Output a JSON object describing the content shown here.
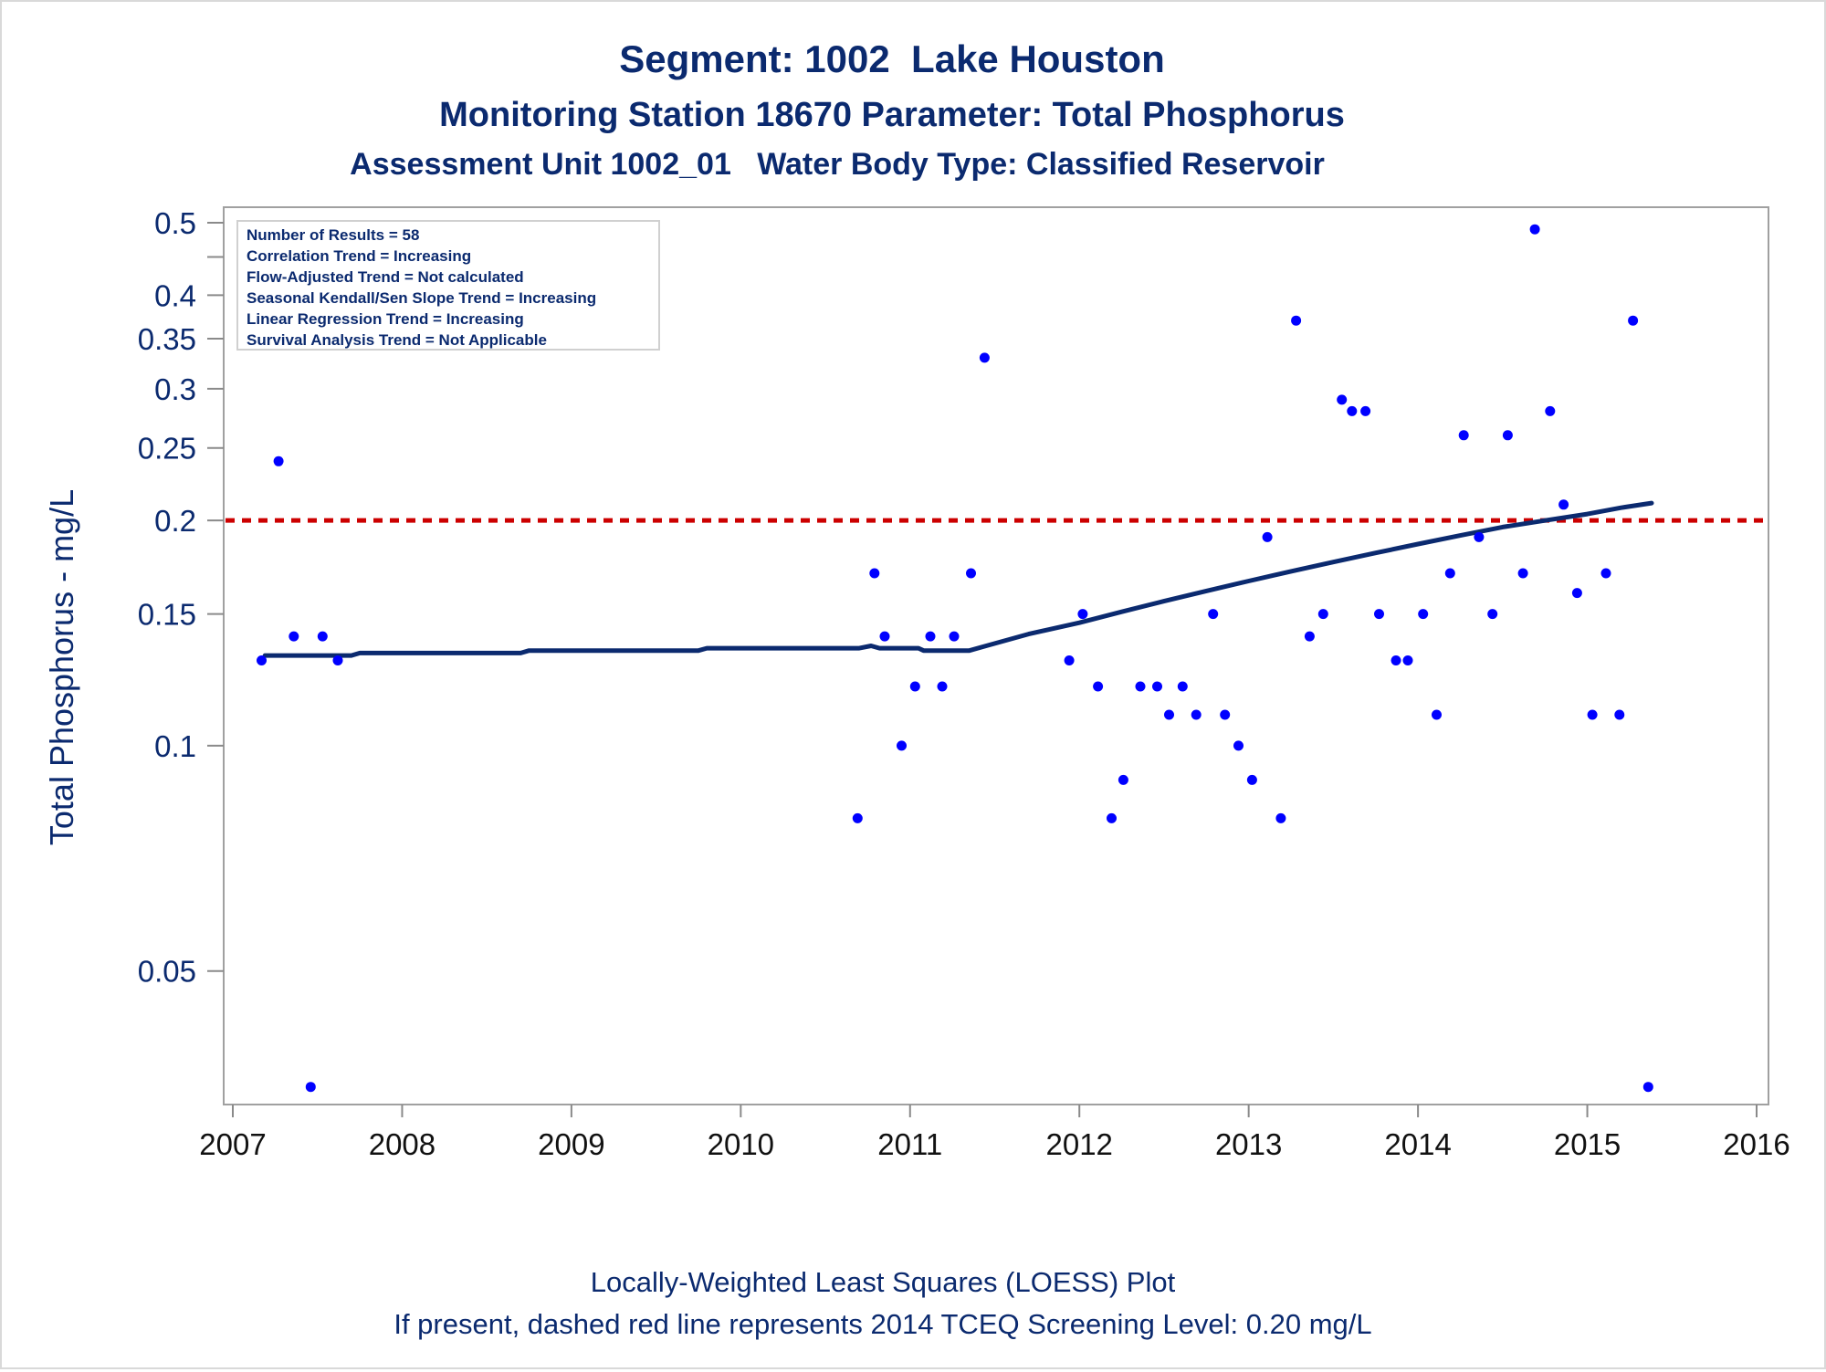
{
  "chart_data": {
    "type": "scatter",
    "title": "Segment: 1002  Lake Houston",
    "subtitle": "Monitoring Station 18670 Parameter: Total Phosphorus",
    "subtitle2": "Assessment Unit 1002_01   Water Body Type: Classified Reservoir",
    "ylabel": "Total Phosphorus - mg/L",
    "xlabel": "",
    "footnote1": "Locally-Weighted Least Squares (LOESS) Plot",
    "footnote2": "If present, dashed red line represents 2014 TCEQ Screening Level: 0.20 mg/L",
    "y_scale": "log",
    "xlim": [
      2007,
      2016
    ],
    "ylim": [
      0.034,
      0.52
    ],
    "x_ticks": [
      {
        "value": 2007,
        "label": "2007"
      },
      {
        "value": 2008,
        "label": "2008"
      },
      {
        "value": 2009,
        "label": "2009"
      },
      {
        "value": 2010,
        "label": "2010"
      },
      {
        "value": 2011,
        "label": "2011"
      },
      {
        "value": 2012,
        "label": "2012"
      },
      {
        "value": 2013,
        "label": "2013"
      },
      {
        "value": 2014,
        "label": "2014"
      },
      {
        "value": 2015,
        "label": "2015"
      },
      {
        "value": 2016,
        "label": "2016"
      }
    ],
    "y_ticks": [
      {
        "value": 0.05,
        "label": "0.05"
      },
      {
        "value": 0.1,
        "label": "0.1"
      },
      {
        "value": 0.15,
        "label": "0.15"
      },
      {
        "value": 0.2,
        "label": "0.2"
      },
      {
        "value": 0.25,
        "label": "0.25"
      },
      {
        "value": 0.3,
        "label": "0.3"
      },
      {
        "value": 0.35,
        "label": "0.35"
      },
      {
        "value": 0.4,
        "label": "0.4"
      },
      {
        "value": 0.45,
        "label": ""
      },
      {
        "value": 0.5,
        "label": "0.5"
      }
    ],
    "stats_box": [
      "Number of Results = 58",
      "Correlation Trend = Increasing",
      "Flow-Adjusted Trend = Not calculated",
      "Seasonal Kendall/Sen Slope Trend = Increasing",
      "Linear Regression Trend = Increasing",
      "Survival Analysis Trend = Not Applicable"
    ],
    "legend_placement": "top-left",
    "grid": false,
    "screening_level": 0.2,
    "colors": {
      "text": "#0b2a6f",
      "points": "#0000ff",
      "loess": "#0b2a6f",
      "screening": "#cc0000",
      "frame": "#a0a0a0"
    },
    "series": [
      {
        "type": "scatter",
        "points": [
          {
            "x": 2007.17,
            "y": 0.13
          },
          {
            "x": 2007.27,
            "y": 0.24
          },
          {
            "x": 2007.36,
            "y": 0.14
          },
          {
            "x": 2007.46,
            "y": 0.035
          },
          {
            "x": 2007.53,
            "y": 0.14
          },
          {
            "x": 2007.62,
            "y": 0.13
          },
          {
            "x": 2010.69,
            "y": 0.08
          },
          {
            "x": 2010.79,
            "y": 0.17
          },
          {
            "x": 2010.85,
            "y": 0.14
          },
          {
            "x": 2010.95,
            "y": 0.1
          },
          {
            "x": 2011.03,
            "y": 0.12
          },
          {
            "x": 2011.12,
            "y": 0.14
          },
          {
            "x": 2011.19,
            "y": 0.12
          },
          {
            "x": 2011.26,
            "y": 0.14
          },
          {
            "x": 2011.36,
            "y": 0.17
          },
          {
            "x": 2011.44,
            "y": 0.33
          },
          {
            "x": 2011.94,
            "y": 0.13
          },
          {
            "x": 2012.02,
            "y": 0.15
          },
          {
            "x": 2012.11,
            "y": 0.12
          },
          {
            "x": 2012.19,
            "y": 0.08
          },
          {
            "x": 2012.26,
            "y": 0.09
          },
          {
            "x": 2012.36,
            "y": 0.12
          },
          {
            "x": 2012.46,
            "y": 0.12
          },
          {
            "x": 2012.53,
            "y": 0.11
          },
          {
            "x": 2012.61,
            "y": 0.12
          },
          {
            "x": 2012.69,
            "y": 0.11
          },
          {
            "x": 2012.79,
            "y": 0.15
          },
          {
            "x": 2012.86,
            "y": 0.11
          },
          {
            "x": 2012.94,
            "y": 0.1
          },
          {
            "x": 2013.02,
            "y": 0.09
          },
          {
            "x": 2013.11,
            "y": 0.19
          },
          {
            "x": 2013.19,
            "y": 0.08
          },
          {
            "x": 2013.28,
            "y": 0.37
          },
          {
            "x": 2013.36,
            "y": 0.14
          },
          {
            "x": 2013.44,
            "y": 0.15
          },
          {
            "x": 2013.55,
            "y": 0.29
          },
          {
            "x": 2013.61,
            "y": 0.28
          },
          {
            "x": 2013.69,
            "y": 0.28
          },
          {
            "x": 2013.77,
            "y": 0.15
          },
          {
            "x": 2013.87,
            "y": 0.13
          },
          {
            "x": 2013.94,
            "y": 0.13
          },
          {
            "x": 2014.03,
            "y": 0.15
          },
          {
            "x": 2014.11,
            "y": 0.11
          },
          {
            "x": 2014.19,
            "y": 0.17
          },
          {
            "x": 2014.27,
            "y": 0.26
          },
          {
            "x": 2014.36,
            "y": 0.19
          },
          {
            "x": 2014.44,
            "y": 0.15
          },
          {
            "x": 2014.53,
            "y": 0.26
          },
          {
            "x": 2014.62,
            "y": 0.17
          },
          {
            "x": 2014.69,
            "y": 0.49
          },
          {
            "x": 2014.78,
            "y": 0.28
          },
          {
            "x": 2014.86,
            "y": 0.21
          },
          {
            "x": 2014.94,
            "y": 0.16
          },
          {
            "x": 2015.03,
            "y": 0.11
          },
          {
            "x": 2015.11,
            "y": 0.17
          },
          {
            "x": 2015.19,
            "y": 0.11
          },
          {
            "x": 2015.27,
            "y": 0.37
          },
          {
            "x": 2015.36,
            "y": 0.035
          }
        ]
      },
      {
        "type": "line",
        "points": [
          {
            "x": 2007.19,
            "y": 0.132
          },
          {
            "x": 2007.7,
            "y": 0.132
          },
          {
            "x": 2007.75,
            "y": 0.133
          },
          {
            "x": 2008.7,
            "y": 0.133
          },
          {
            "x": 2008.75,
            "y": 0.134
          },
          {
            "x": 2009.75,
            "y": 0.134
          },
          {
            "x": 2009.8,
            "y": 0.135
          },
          {
            "x": 2010.7,
            "y": 0.135
          },
          {
            "x": 2010.77,
            "y": 0.136
          },
          {
            "x": 2010.82,
            "y": 0.135
          },
          {
            "x": 2011.05,
            "y": 0.135
          },
          {
            "x": 2011.08,
            "y": 0.134
          },
          {
            "x": 2011.35,
            "y": 0.134
          },
          {
            "x": 2011.45,
            "y": 0.136
          },
          {
            "x": 2011.7,
            "y": 0.141
          },
          {
            "x": 2012.0,
            "y": 0.146
          },
          {
            "x": 2012.25,
            "y": 0.151
          },
          {
            "x": 2012.5,
            "y": 0.156
          },
          {
            "x": 2012.75,
            "y": 0.161
          },
          {
            "x": 2013.0,
            "y": 0.166
          },
          {
            "x": 2013.25,
            "y": 0.171
          },
          {
            "x": 2013.5,
            "y": 0.176
          },
          {
            "x": 2013.75,
            "y": 0.181
          },
          {
            "x": 2014.0,
            "y": 0.186
          },
          {
            "x": 2014.25,
            "y": 0.191
          },
          {
            "x": 2014.5,
            "y": 0.196
          },
          {
            "x": 2014.75,
            "y": 0.2
          },
          {
            "x": 2015.0,
            "y": 0.204
          },
          {
            "x": 2015.2,
            "y": 0.208
          },
          {
            "x": 2015.38,
            "y": 0.211
          }
        ]
      }
    ]
  }
}
